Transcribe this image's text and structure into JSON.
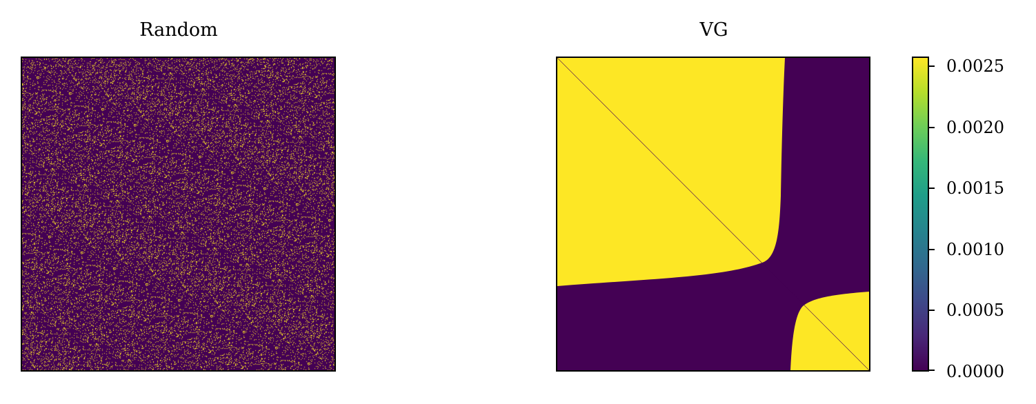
{
  "chart_data": [
    {
      "type": "heatmap",
      "title": "Random",
      "description_values": {
        "background_value": 0.0,
        "sparse_value": 0.0026,
        "pattern": "random"
      },
      "colormap": "viridis",
      "colors": {
        "low": "#440154",
        "high": "#fde725"
      },
      "xticks": [],
      "yticks": []
    },
    {
      "type": "heatmap",
      "title": "VG",
      "colormap": "viridis",
      "colors": {
        "low": "#440154",
        "high": "#fde725",
        "diagonal": "#440154"
      },
      "xticks": [],
      "yticks": [],
      "colorbar": {
        "ticks": [
          0.0,
          0.0005,
          0.001,
          0.0015,
          0.002,
          0.0025
        ],
        "tick_labels": [
          "0.0000",
          "0.0005",
          "0.0010",
          "0.0015",
          "0.0020",
          "0.0025"
        ],
        "range": [
          0.0,
          0.00258
        ]
      }
    }
  ]
}
